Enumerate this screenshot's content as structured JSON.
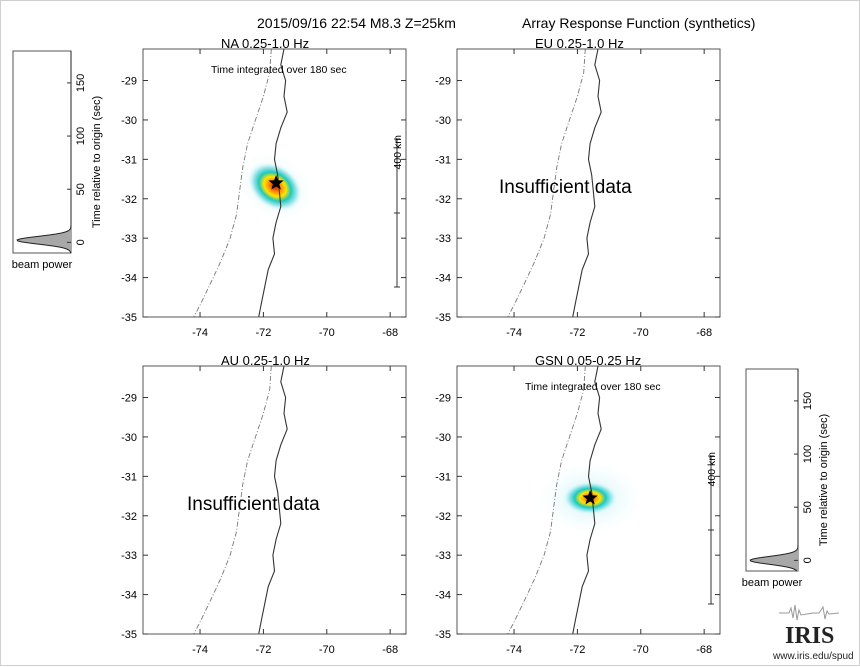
{
  "header": {
    "event": "2015/09/16 22:54  M8.3  Z=25km",
    "title": "Array Response Function (synthetics)"
  },
  "map_axes": {
    "x_ticks": [
      "-74",
      "-72",
      "-70",
      "-68"
    ],
    "y_ticks": [
      "-29",
      "-30",
      "-31",
      "-32",
      "-33",
      "-34",
      "-35"
    ]
  },
  "panels": [
    {
      "title": "NA  0.25-1.0 Hz",
      "note": "Time integrated over 180 sec",
      "insufficient": "",
      "scale": "400 km"
    },
    {
      "title": "EU  0.25-1.0 Hz",
      "note": "",
      "insufficient": "Insufficient data",
      "scale": ""
    },
    {
      "title": "AU  0.25-1.0 Hz",
      "note": "",
      "insufficient": "Insufficient data",
      "scale": ""
    },
    {
      "title": "GSN  0.05-0.25 Hz",
      "note": "Time integrated over 180 sec",
      "insufficient": "",
      "scale": "400 km"
    }
  ],
  "beam_power": {
    "ylabel": "Time relative to origin (sec)",
    "ticks": [
      "0",
      "50",
      "100",
      "150"
    ],
    "label": "beam power"
  },
  "logo": {
    "text": "IRIS",
    "url": "www.iris.edu/spud"
  },
  "chart_data": [
    {
      "type": "heatmap",
      "panel": "NA  0.25-1.0 Hz",
      "xlim": [
        -75.8,
        -67.5
      ],
      "ylim": [
        -35,
        -28.2
      ],
      "epicenter": {
        "lon": -71.6,
        "lat": -31.6
      },
      "beam_peak": {
        "lon": -71.6,
        "lat": -31.65
      }
    },
    {
      "type": "heatmap",
      "panel": "EU  0.25-1.0 Hz",
      "xlim": [
        -75.8,
        -67.5
      ],
      "ylim": [
        -35,
        -28.2
      ],
      "epicenter": null,
      "beam_peak": null
    },
    {
      "type": "heatmap",
      "panel": "AU  0.25-1.0 Hz",
      "xlim": [
        -75.8,
        -67.5
      ],
      "ylim": [
        -35,
        -28.2
      ],
      "epicenter": null,
      "beam_peak": null
    },
    {
      "type": "heatmap",
      "panel": "GSN  0.05-0.25 Hz",
      "xlim": [
        -75.8,
        -67.5
      ],
      "ylim": [
        -35,
        -28.2
      ],
      "epicenter": {
        "lon": -71.6,
        "lat": -31.55
      },
      "beam_peak": {
        "lon": -71.6,
        "lat": -31.55
      }
    },
    {
      "type": "area",
      "panel": "beam power (NA)",
      "ylim": [
        -10,
        180
      ],
      "peak_time_sec": 2
    },
    {
      "type": "area",
      "panel": "beam power (GSN)",
      "ylim": [
        -10,
        180
      ],
      "peak_time_sec": 0
    }
  ]
}
